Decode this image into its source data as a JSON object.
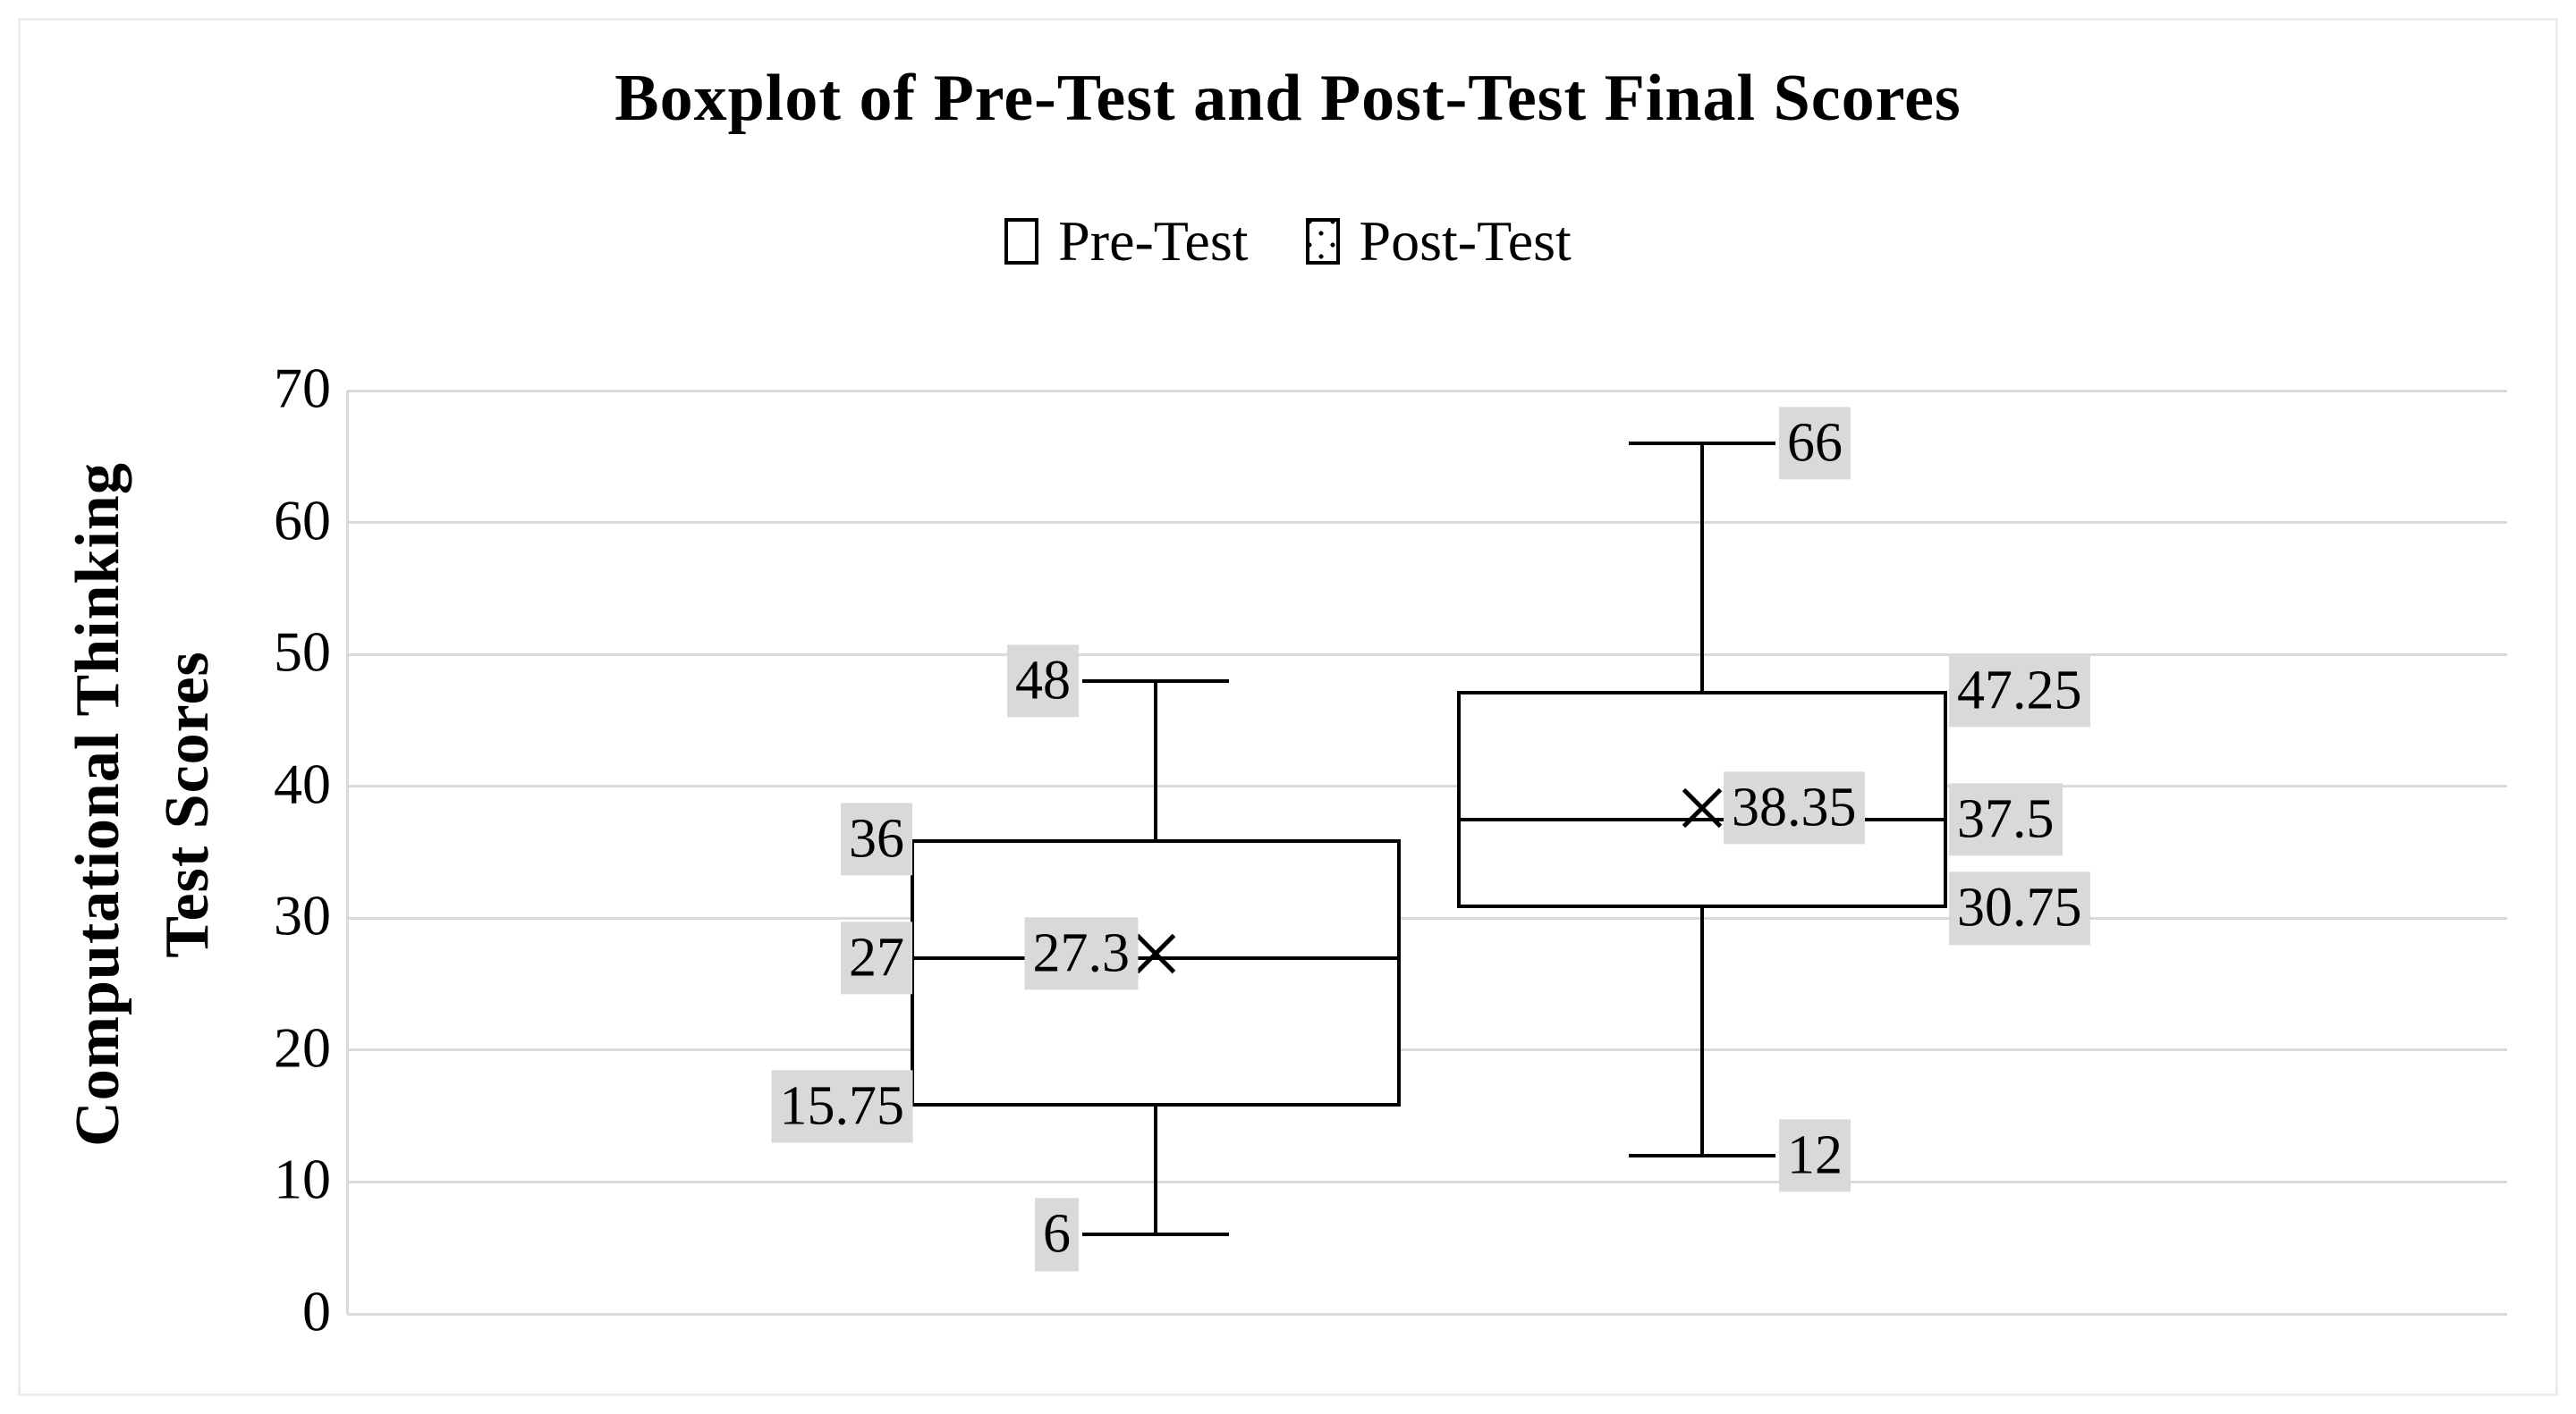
{
  "title": "Boxplot of Pre-Test and Post-Test Final Scores",
  "legend": [
    {
      "label": "Pre-Test",
      "pattern": "white"
    },
    {
      "label": "Post-Test",
      "pattern": "dotted"
    }
  ],
  "y_axis": {
    "label_line1": "Computational Thinking",
    "label_line2": "Test Scores",
    "min": 0,
    "max": 70,
    "step": 10
  },
  "colors": {
    "grid": "#d9d9d9",
    "axis": "#d9d9d9",
    "label_bg": "#d9d9d9",
    "line": "#000000",
    "border": "#ececec"
  },
  "chart_data": {
    "type": "boxplot",
    "title": "Boxplot of Pre-Test and Post-Test Final Scores",
    "ylabel": "Computational Thinking Test Scores",
    "xlabel": "",
    "ylim": [
      0,
      70
    ],
    "ytick_step": 10,
    "grid": true,
    "legend_position": "top",
    "categories": [
      "Pre-Test",
      "Post-Test"
    ],
    "series": [
      {
        "name": "Pre-Test",
        "min": 6,
        "q1": 15.75,
        "median": 27,
        "mean": 27.3,
        "q3": 36,
        "max": 48,
        "fill": "white",
        "label_side": "left",
        "labels": {
          "max": "48",
          "q3": "36",
          "mean": "27.3",
          "median": "27",
          "q1": "15.75",
          "min": "6"
        }
      },
      {
        "name": "Post-Test",
        "min": 12,
        "q1": 30.75,
        "median": 37.5,
        "mean": 38.35,
        "q3": 47.25,
        "max": 66,
        "fill": "dotted",
        "label_side": "right",
        "labels": {
          "max": "66",
          "q3": "47.25",
          "mean": "38.35",
          "median": "37.5",
          "q1": "30.75",
          "min": "12"
        }
      }
    ]
  }
}
